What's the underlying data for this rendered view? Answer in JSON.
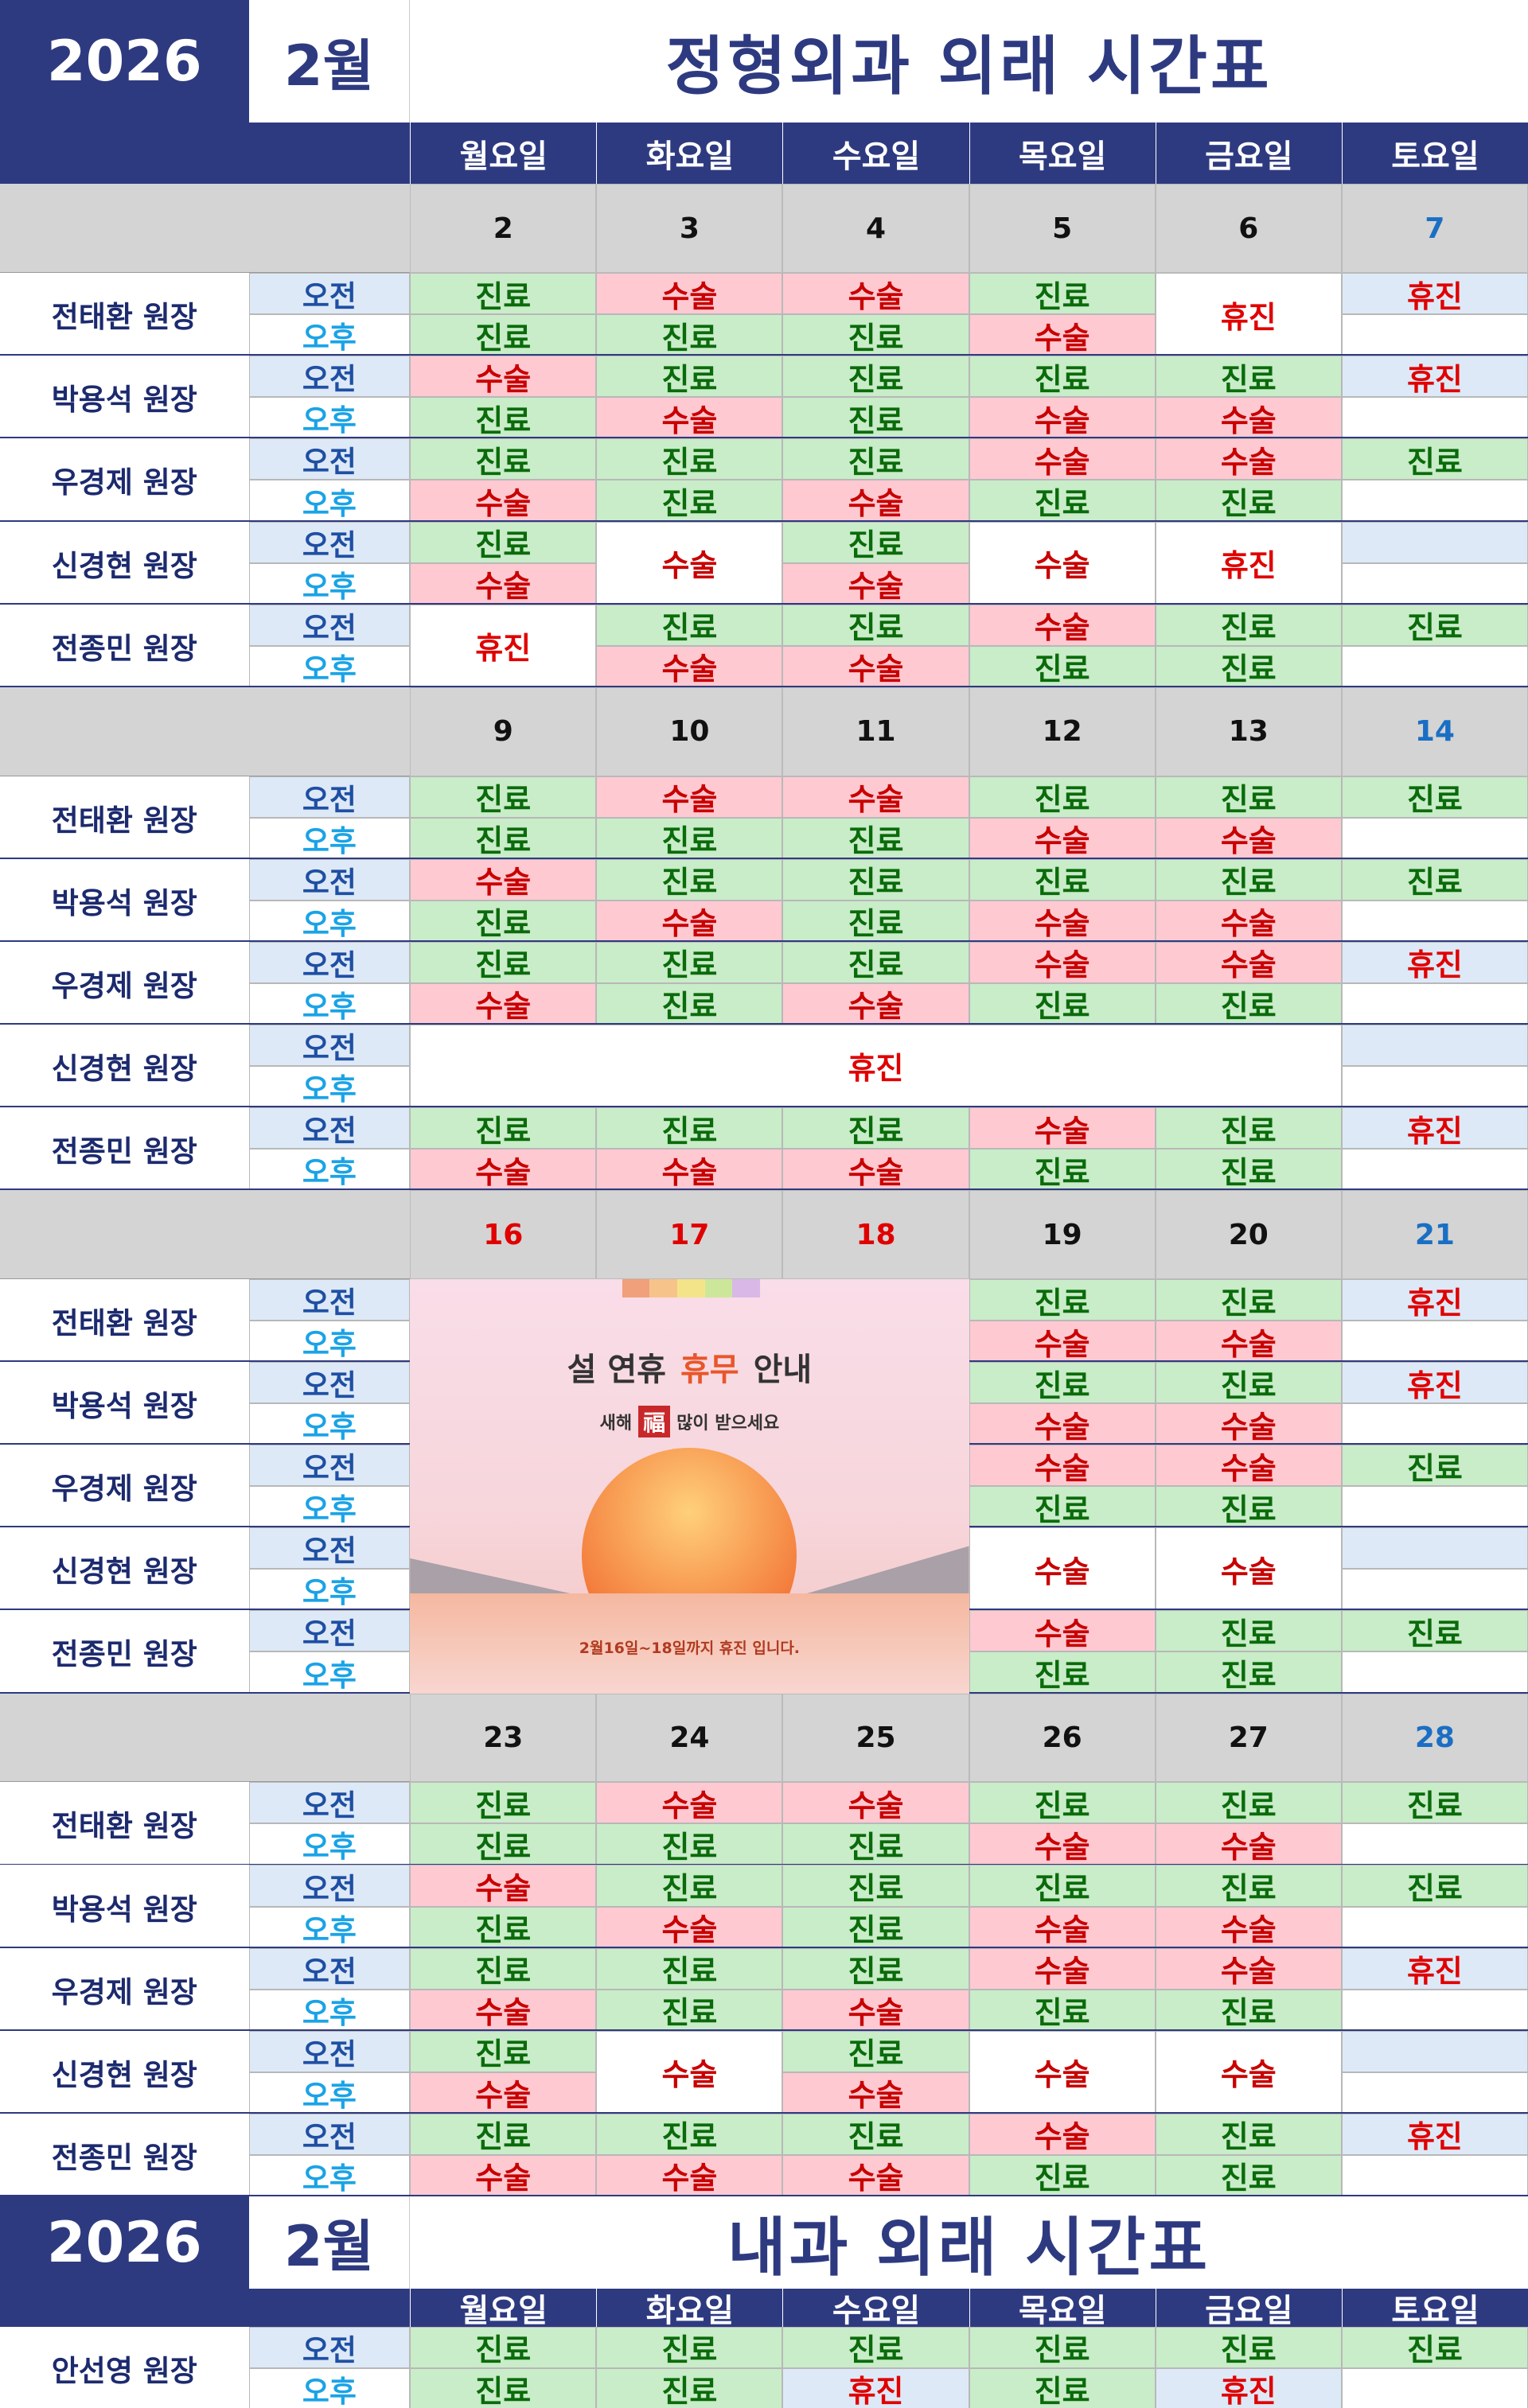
{
  "periods": [
    "오전",
    "오후"
  ],
  "weekdays": [
    "월요일",
    "화요일",
    "수요일",
    "목요일",
    "금요일",
    "토요일"
  ],
  "styles": {
    "navy": "#2e3a80",
    "title_fg": "#2e3a80",
    "name_fg": "#1c2a6e",
    "date_bg": "#d4d4d4",
    "am_label_bg": "#dde9f7",
    "am_label_fg": "#1f4fa3",
    "pm_label_fg": "#1aa3e6",
    "am_empty_bg": "#dde9f7",
    "pm_empty_bg": "#ffffff",
    "merged_bg": "#ffffff",
    "line": "#2e3a80",
    "status": {
      "진료": {
        "bg": "#c9ecc9",
        "fg": "#0a6b0a"
      },
      "수술": {
        "bg": "#ffc9d2",
        "fg": "#c80000"
      },
      "휴진": {
        "bg": "#dde9f7",
        "fg": "#e00000"
      }
    }
  },
  "sections": [
    {
      "year": "2026",
      "month": "2월",
      "title": "정형외과 외래 시간표",
      "weeks": [
        {
          "dates": [
            "2",
            "3",
            "4",
            "5",
            "6",
            "7"
          ],
          "date_colors": [
            "#111",
            "#111",
            "#111",
            "#111",
            "#111",
            "#1a6fc4"
          ],
          "doctors": [
            {
              "name": "전태환 원장",
              "am": [
                "진료",
                "수술",
                "수술",
                "진료",
                {
                  "text": "휴진",
                  "rowspan": 2
                },
                "휴진"
              ],
              "pm": [
                "진료",
                "진료",
                "진료",
                "수술",
                null,
                null
              ]
            },
            {
              "name": "박용석 원장",
              "am": [
                "수술",
                "진료",
                "진료",
                "진료",
                "진료",
                "휴진"
              ],
              "pm": [
                "진료",
                "수술",
                "진료",
                "수술",
                "수술",
                null
              ]
            },
            {
              "name": "우경제 원장",
              "am": [
                "진료",
                "진료",
                "진료",
                "수술",
                "수술",
                "진료"
              ],
              "pm": [
                "수술",
                "진료",
                "수술",
                "진료",
                "진료",
                null
              ]
            },
            {
              "name": "신경현 원장",
              "am": [
                "진료",
                {
                  "text": "수술",
                  "rowspan": 2
                },
                "진료",
                {
                  "text": "수술",
                  "rowspan": 2
                },
                {
                  "text": "휴진",
                  "rowspan": 2
                },
                null
              ],
              "pm": [
                "수술",
                null,
                "수술",
                null,
                null,
                null
              ]
            },
            {
              "name": "전종민 원장",
              "am": [
                {
                  "text": "휴진",
                  "rowspan": 2
                },
                "진료",
                "진료",
                "수술",
                "진료",
                "진료"
              ],
              "pm": [
                null,
                "수술",
                "수술",
                "진료",
                "진료",
                null
              ]
            }
          ]
        },
        {
          "dates": [
            "9",
            "10",
            "11",
            "12",
            "13",
            "14"
          ],
          "date_colors": [
            "#111",
            "#111",
            "#111",
            "#111",
            "#111",
            "#1a6fc4"
          ],
          "doctors": [
            {
              "name": "전태환 원장",
              "am": [
                "진료",
                "수술",
                "수술",
                "진료",
                "진료",
                "진료"
              ],
              "pm": [
                "진료",
                "진료",
                "진료",
                "수술",
                "수술",
                null
              ]
            },
            {
              "name": "박용석 원장",
              "am": [
                "수술",
                "진료",
                "진료",
                "진료",
                "진료",
                "진료"
              ],
              "pm": [
                "진료",
                "수술",
                "진료",
                "수술",
                "수술",
                null
              ]
            },
            {
              "name": "우경제 원장",
              "am": [
                "진료",
                "진료",
                "진료",
                "수술",
                "수술",
                "휴진"
              ],
              "pm": [
                "수술",
                "진료",
                "수술",
                "진료",
                "진료",
                null
              ]
            },
            {
              "name": "신경현 원장",
              "am": [
                {
                  "text": "휴진",
                  "rowspan": 2,
                  "colspan": 5
                },
                null,
                null,
                null,
                null,
                null
              ],
              "pm": [
                null,
                null,
                null,
                null,
                null,
                null
              ]
            },
            {
              "name": "전종민 원장",
              "am": [
                "진료",
                "진료",
                "진료",
                "수술",
                "진료",
                "휴진"
              ],
              "pm": [
                "수술",
                "수술",
                "수술",
                "진료",
                "진료",
                null
              ]
            }
          ]
        },
        {
          "dates": [
            "16",
            "17",
            "18",
            "19",
            "20",
            "21"
          ],
          "date_colors": [
            "#e00000",
            "#e00000",
            "#e00000",
            "#111",
            "#111",
            "#1a6fc4"
          ],
          "banner": {
            "title": [
              "설 연휴",
              "휴무",
              "안내"
            ],
            "greeting": [
              "새해",
              "福",
              "많이 받으세요"
            ],
            "note": "2월16일~18일까지 휴진 입니다."
          },
          "doctors": [
            {
              "name": "전태환 원장",
              "am": [
                null,
                null,
                null,
                "진료",
                "진료",
                "휴진"
              ],
              "pm": [
                null,
                null,
                null,
                "수술",
                "수술",
                null
              ]
            },
            {
              "name": "박용석 원장",
              "am": [
                null,
                null,
                null,
                "진료",
                "진료",
                "휴진"
              ],
              "pm": [
                null,
                null,
                null,
                "수술",
                "수술",
                null
              ]
            },
            {
              "name": "우경제 원장",
              "am": [
                null,
                null,
                null,
                "수술",
                "수술",
                "진료"
              ],
              "pm": [
                null,
                null,
                null,
                "진료",
                "진료",
                null
              ]
            },
            {
              "name": "신경현 원장",
              "am": [
                null,
                null,
                null,
                {
                  "text": "수술",
                  "rowspan": 2
                },
                {
                  "text": "수술",
                  "rowspan": 2
                },
                null
              ],
              "pm": [
                null,
                null,
                null,
                null,
                null,
                null
              ]
            },
            {
              "name": "전종민 원장",
              "am": [
                null,
                null,
                null,
                "수술",
                "진료",
                "진료"
              ],
              "pm": [
                null,
                null,
                null,
                "진료",
                "진료",
                null
              ]
            }
          ]
        },
        {
          "dates": [
            "23",
            "24",
            "25",
            "26",
            "27",
            "28"
          ],
          "date_colors": [
            "#111",
            "#111",
            "#111",
            "#111",
            "#111",
            "#1a6fc4"
          ],
          "doctors": [
            {
              "name": "전태환 원장",
              "am": [
                "진료",
                "수술",
                "수술",
                "진료",
                "진료",
                "진료"
              ],
              "pm": [
                "진료",
                "진료",
                "진료",
                "수술",
                "수술",
                null
              ]
            },
            {
              "name": "박용석 원장",
              "am": [
                "수술",
                "진료",
                "진료",
                "진료",
                "진료",
                "진료"
              ],
              "pm": [
                "진료",
                "수술",
                "진료",
                "수술",
                "수술",
                null
              ]
            },
            {
              "name": "우경제 원장",
              "am": [
                "진료",
                "진료",
                "진료",
                "수술",
                "수술",
                "휴진"
              ],
              "pm": [
                "수술",
                "진료",
                "수술",
                "진료",
                "진료",
                null
              ]
            },
            {
              "name": "신경현 원장",
              "am": [
                "진료",
                {
                  "text": "수술",
                  "rowspan": 2
                },
                "진료",
                {
                  "text": "수술",
                  "rowspan": 2
                },
                {
                  "text": "수술",
                  "rowspan": 2
                },
                null
              ],
              "pm": [
                "수술",
                null,
                "수술",
                null,
                null,
                null
              ]
            },
            {
              "name": "전종민 원장",
              "am": [
                "진료",
                "진료",
                "진료",
                "수술",
                "진료",
                "휴진"
              ],
              "pm": [
                "수술",
                "수술",
                "수술",
                "진료",
                "진료",
                null
              ]
            }
          ]
        }
      ]
    },
    {
      "year": "2026",
      "month": "2월",
      "title": "내과 외래 시간표",
      "doctors": [
        {
          "name": "안선영 원장",
          "am": [
            "진료",
            "진료",
            "진료",
            "진료",
            "진료",
            "진료"
          ],
          "pm": [
            "진료",
            "진료",
            "휴진",
            "진료",
            "휴진",
            null
          ]
        }
      ]
    }
  ]
}
